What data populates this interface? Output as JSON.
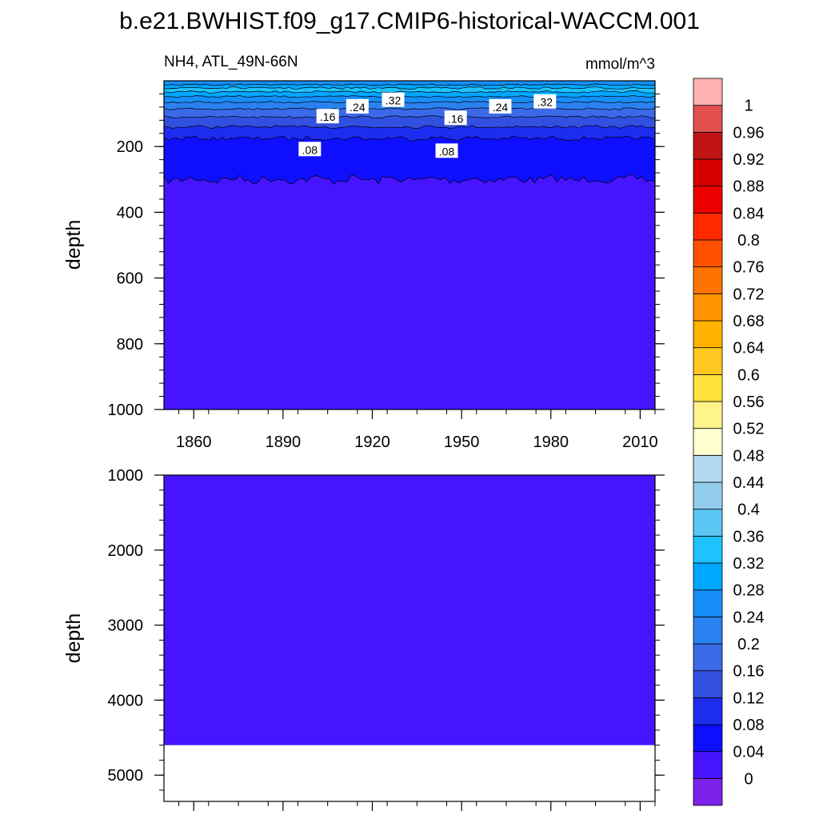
{
  "chart_data": {
    "type": "heatmap",
    "title": "b.e21.BWHIST.f09_g17.CMIP6-historical-WACCM.001",
    "subtitle_left": "NH4, ATL_49N-66N",
    "units": "mmol/m^3",
    "x_range": [
      1850,
      2015
    ],
    "x_ticks": [
      "1860",
      "1890",
      "1920",
      "1950",
      "1980",
      "2010"
    ],
    "top_panel": {
      "ylabel": "depth",
      "ylim": [
        0,
        1000
      ],
      "y_ticks": [
        "200",
        "400",
        "600",
        "800",
        "1000"
      ],
      "contour_labels": [
        {
          "text": ".32",
          "year": 1927,
          "depth": 60
        },
        {
          "text": ".24",
          "year": 1915,
          "depth": 80
        },
        {
          "text": ".16",
          "year": 1905,
          "depth": 110
        },
        {
          "text": ".08",
          "year": 1899,
          "depth": 210
        },
        {
          "text": ".32",
          "year": 1978,
          "depth": 65
        },
        {
          "text": ".24",
          "year": 1963,
          "depth": 80
        },
        {
          "text": ".16",
          "year": 1948,
          "depth": 115
        },
        {
          "text": ".08",
          "year": 1945,
          "depth": 215
        }
      ]
    },
    "bottom_panel": {
      "ylabel": "depth",
      "ylim": [
        1000,
        5350
      ],
      "y_ticks": [
        "1000",
        "2000",
        "3000",
        "4000",
        "5000"
      ],
      "data_bottom_depth": 4600
    },
    "colorbar": {
      "labels": [
        "0",
        "0.04",
        "0.08",
        "0.12",
        "0.16",
        "0.2",
        "0.24",
        "0.28",
        "0.32",
        "0.36",
        "0.4",
        "0.44",
        "0.48",
        "0.52",
        "0.56",
        "0.6",
        "0.64",
        "0.68",
        "0.72",
        "0.76",
        "0.8",
        "0.84",
        "0.88",
        "0.92",
        "0.96",
        "1"
      ],
      "colors": [
        "#7d22ea",
        "#4714ff",
        "#0f0fff",
        "#1d2df0",
        "#3250e0",
        "#3a6ae8",
        "#2a82f0",
        "#168ef7",
        "#00a7ff",
        "#1ec2ff",
        "#5bc6f4",
        "#93cdee",
        "#b2dbf2",
        "#ffffd0",
        "#fff38c",
        "#ffe23c",
        "#ffc820",
        "#ffb200",
        "#ff9400",
        "#ff7400",
        "#ff5000",
        "#ff2a00",
        "#ef0000",
        "#d60000",
        "#c01414",
        "#e25050",
        "#ffb1b1"
      ]
    }
  }
}
